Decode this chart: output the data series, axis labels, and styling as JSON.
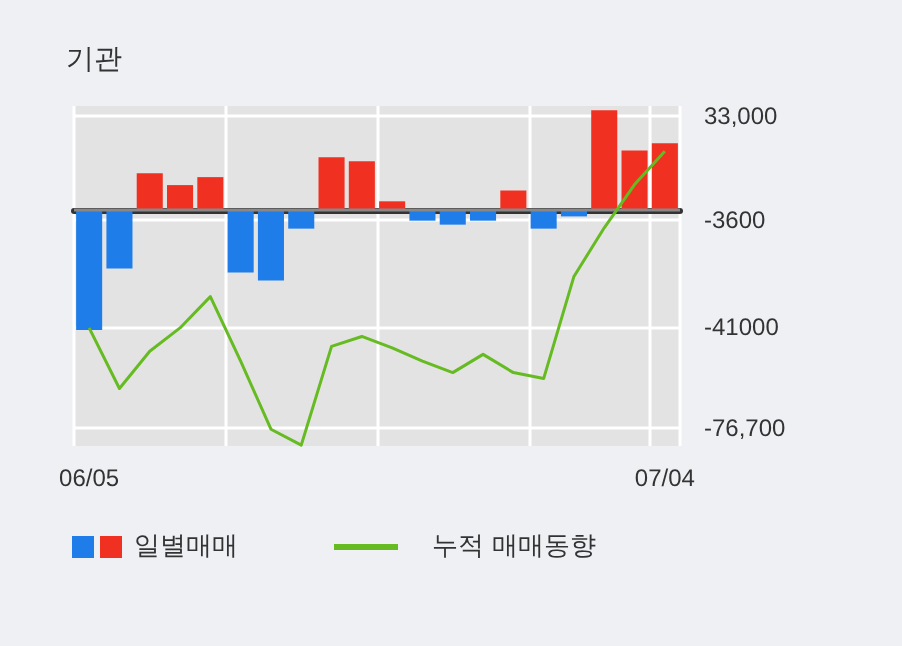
{
  "chart_data": {
    "type": "bar",
    "title": "기관",
    "categories": [
      "06/05",
      null,
      null,
      null,
      null,
      null,
      null,
      null,
      null,
      null,
      null,
      null,
      null,
      null,
      null,
      null,
      null,
      null,
      null,
      "07/04"
    ],
    "series": [
      {
        "name": "일별매매",
        "colors": [
          "#1e7de8",
          "#1e7de8",
          "#f03020",
          "#f03020",
          "#f03020",
          "#1e7de8",
          "#1e7de8",
          "#1e7de8",
          "#f03020",
          "#f03020",
          "#f03020",
          "#1e7de8",
          "#1e7de8",
          "#1e7de8",
          "#f03020",
          "#1e7de8",
          "#1e7de8",
          "#f03020",
          "#f03020",
          "#f03020"
        ],
        "values": [
          -42200,
          -20600,
          12900,
          8700,
          11500,
          -22000,
          -24800,
          -6600,
          18500,
          17100,
          3000,
          -3800,
          -5200,
          -3800,
          6800,
          -6600,
          -2300,
          35000,
          20900,
          23400
        ]
      },
      {
        "name": "누적 매매동향",
        "type": "line",
        "color": "#66bb22",
        "values": [
          -41500,
          -62800,
          -49700,
          -41500,
          -30500,
          -53200,
          -77100,
          -82700,
          -48000,
          -44500,
          -48500,
          -53200,
          -57200,
          -50800,
          -57200,
          -59300,
          -23400,
          -6300,
          8900,
          20600
        ]
      }
    ],
    "ylim": [
      -83000,
      36500
    ],
    "yticks": [
      {
        "value": 33000,
        "label": "33,000"
      },
      -3600,
      -41000,
      {
        "value": -76700,
        "label": "-76,700"
      }
    ],
    "ref_lines": [
      {
        "axis": "y",
        "value": 0,
        "color": "#888888"
      }
    ],
    "grid": true,
    "legend": "bottom left",
    "marker": "none"
  }
}
